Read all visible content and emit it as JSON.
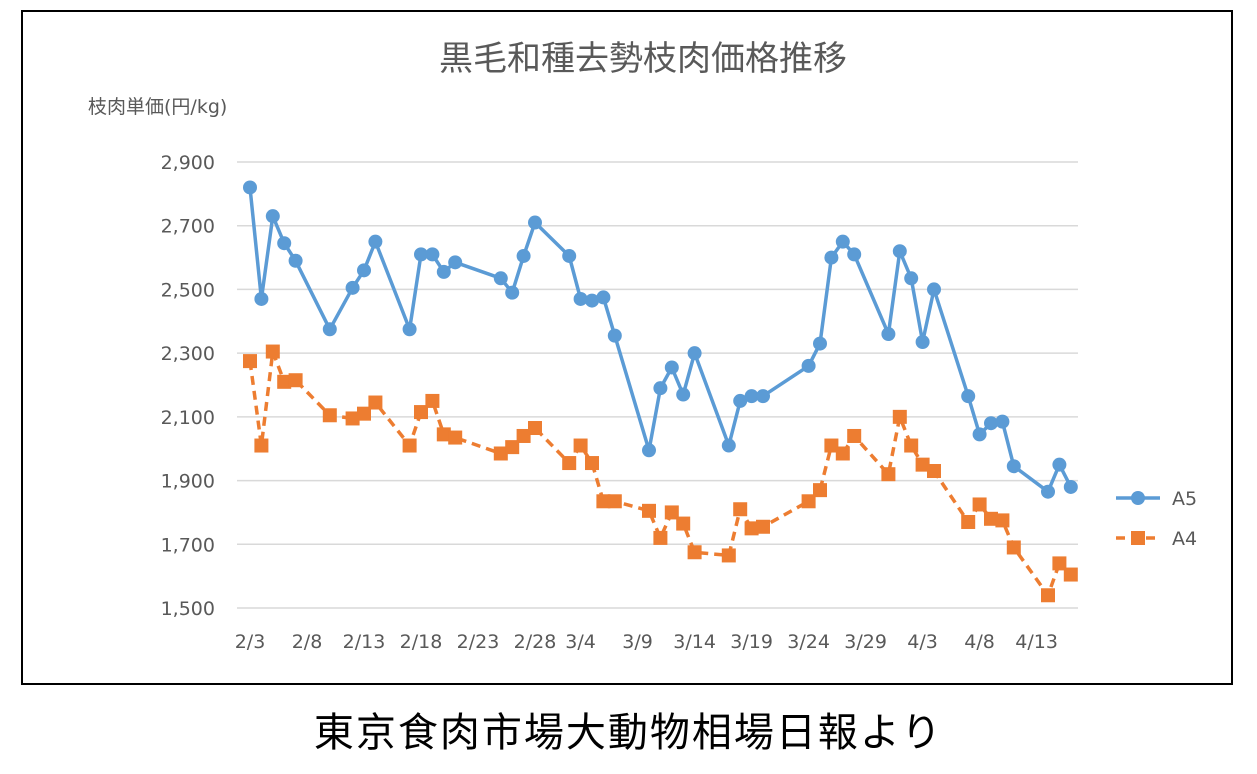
{
  "chart_data": {
    "type": "line",
    "title": "黒毛和種去勢枝肉価格推移",
    "ylabel": "枝肉単価(円/kg)",
    "xlabel": "",
    "ylim": [
      1500,
      2900
    ],
    "yticks": [
      1500,
      1700,
      1900,
      2100,
      2300,
      2500,
      2700,
      2900
    ],
    "ytick_labels": [
      "1,500",
      "1,700",
      "1,900",
      "2,100",
      "2,300",
      "2,500",
      "2,700",
      "2,900"
    ],
    "xlim": [
      "2/3",
      "4/15"
    ],
    "xtick_labels": [
      "2/3",
      "2/8",
      "2/13",
      "2/18",
      "2/23",
      "2/28",
      "3/4",
      "3/9",
      "3/14",
      "3/19",
      "3/24",
      "3/29",
      "4/3",
      "4/8",
      "4/13"
    ],
    "grid": true,
    "legend_position": "right",
    "series": [
      {
        "name": "A5",
        "color": "#5B9BD5",
        "marker": "circle",
        "line_style": "solid",
        "points": [
          [
            "2/3",
            2820
          ],
          [
            "2/4",
            2470
          ],
          [
            "2/5",
            2730
          ],
          [
            "2/6",
            2645
          ],
          [
            "2/7",
            2590
          ],
          [
            "2/10",
            2375
          ],
          [
            "2/12",
            2505
          ],
          [
            "2/13",
            2560
          ],
          [
            "2/14",
            2650
          ],
          [
            "2/17",
            2375
          ],
          [
            "2/18",
            2610
          ],
          [
            "2/19",
            2610
          ],
          [
            "2/20",
            2555
          ],
          [
            "2/21",
            2585
          ],
          [
            "2/25",
            2535
          ],
          [
            "2/26",
            2490
          ],
          [
            "2/27",
            2605
          ],
          [
            "2/28",
            2710
          ],
          [
            "3/3",
            2605
          ],
          [
            "3/4",
            2470
          ],
          [
            "3/5",
            2465
          ],
          [
            "3/6",
            2475
          ],
          [
            "3/7",
            2355
          ],
          [
            "3/10",
            1995
          ],
          [
            "3/11",
            2190
          ],
          [
            "3/12",
            2255
          ],
          [
            "3/13",
            2170
          ],
          [
            "3/14",
            2300
          ],
          [
            "3/17",
            2010
          ],
          [
            "3/18",
            2150
          ],
          [
            "3/19",
            2165
          ],
          [
            "3/20",
            2165
          ],
          [
            "3/24",
            2260
          ],
          [
            "3/25",
            2330
          ],
          [
            "3/26",
            2600
          ],
          [
            "3/27",
            2650
          ],
          [
            "3/28",
            2610
          ],
          [
            "3/31",
            2360
          ],
          [
            "4/1",
            2620
          ],
          [
            "4/2",
            2535
          ],
          [
            "4/3",
            2335
          ],
          [
            "4/4",
            2500
          ],
          [
            "4/7",
            2165
          ],
          [
            "4/8",
            2045
          ],
          [
            "4/9",
            2080
          ],
          [
            "4/10",
            2085
          ],
          [
            "4/11",
            1945
          ],
          [
            "4/14",
            1865
          ],
          [
            "4/15",
            1950
          ],
          [
            "4/16",
            1880
          ]
        ]
      },
      {
        "name": "A4",
        "color": "#ED7D31",
        "marker": "square",
        "line_style": "dashed",
        "points": [
          [
            "2/3",
            2275
          ],
          [
            "2/4",
            2010
          ],
          [
            "2/5",
            2305
          ],
          [
            "2/6",
            2210
          ],
          [
            "2/7",
            2215
          ],
          [
            "2/10",
            2105
          ],
          [
            "2/12",
            2095
          ],
          [
            "2/13",
            2110
          ],
          [
            "2/14",
            2145
          ],
          [
            "2/17",
            2010
          ],
          [
            "2/18",
            2115
          ],
          [
            "2/19",
            2150
          ],
          [
            "2/20",
            2045
          ],
          [
            "2/21",
            2035
          ],
          [
            "2/25",
            1985
          ],
          [
            "2/26",
            2005
          ],
          [
            "2/27",
            2040
          ],
          [
            "2/28",
            2065
          ],
          [
            "3/3",
            1955
          ],
          [
            "3/4",
            2010
          ],
          [
            "3/5",
            1955
          ],
          [
            "3/6",
            1835
          ],
          [
            "3/7",
            1835
          ],
          [
            "3/10",
            1805
          ],
          [
            "3/11",
            1720
          ],
          [
            "3/12",
            1800
          ],
          [
            "3/13",
            1765
          ],
          [
            "3/14",
            1675
          ],
          [
            "3/17",
            1665
          ],
          [
            "3/18",
            1810
          ],
          [
            "3/19",
            1750
          ],
          [
            "3/20",
            1755
          ],
          [
            "3/24",
            1835
          ],
          [
            "3/25",
            1870
          ],
          [
            "3/26",
            2010
          ],
          [
            "3/27",
            1985
          ],
          [
            "3/28",
            2040
          ],
          [
            "3/31",
            1920
          ],
          [
            "4/1",
            2100
          ],
          [
            "4/2",
            2010
          ],
          [
            "4/3",
            1950
          ],
          [
            "4/4",
            1930
          ],
          [
            "4/7",
            1770
          ],
          [
            "4/8",
            1825
          ],
          [
            "4/9",
            1780
          ],
          [
            "4/10",
            1775
          ],
          [
            "4/11",
            1690
          ],
          [
            "4/14",
            1540
          ],
          [
            "4/15",
            1640
          ],
          [
            "4/16",
            1605
          ]
        ]
      }
    ]
  },
  "footer": {
    "source_note": "東京食肉市場大動物相場日報より"
  }
}
